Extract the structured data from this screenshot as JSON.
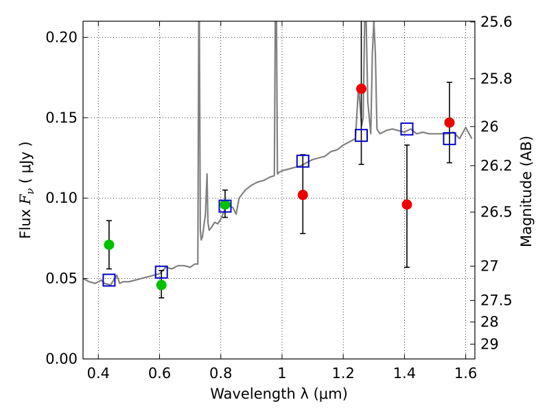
{
  "chart_data": {
    "type": "scatter",
    "xlabel": "Wavelength  λ (μm)",
    "ylabel_parts": {
      "prefix": "Flux  ",
      "symbol": "F",
      "subscript": "ν",
      "units": " ( μJy )"
    },
    "y2label": "Magnitude (AB)",
    "xlim": [
      0.35,
      1.63
    ],
    "ylim": [
      0.0,
      0.21
    ],
    "grid": true,
    "x_ticks": [
      {
        "value": 0.4,
        "label": "0.4"
      },
      {
        "value": 0.6,
        "label": "0.6"
      },
      {
        "value": 0.8,
        "label": "0.8"
      },
      {
        "value": 1.0,
        "label": "1"
      },
      {
        "value": 1.2,
        "label": "1.2"
      },
      {
        "value": 1.4,
        "label": "1.4"
      },
      {
        "value": 1.6,
        "label": "1.6"
      }
    ],
    "y_ticks": [
      {
        "value": 0.0,
        "label": "0.00"
      },
      {
        "value": 0.05,
        "label": "0.05"
      },
      {
        "value": 0.1,
        "label": "0.10"
      },
      {
        "value": 0.15,
        "label": "0.15"
      },
      {
        "value": 0.2,
        "label": "0.20"
      }
    ],
    "y2_ticks": [
      {
        "flux": 0.2096,
        "label": "25.6"
      },
      {
        "flux": 0.1743,
        "label": "25.8"
      },
      {
        "flux": 0.1445,
        "label": "26"
      },
      {
        "flux": 0.1202,
        "label": "26.2"
      },
      {
        "flux": 0.0913,
        "label": "26.5"
      },
      {
        "flux": 0.0577,
        "label": "27"
      },
      {
        "flux": 0.0364,
        "label": "27.5"
      },
      {
        "flux": 0.023,
        "label": "28"
      },
      {
        "flux": 0.0092,
        "label": "29"
      }
    ],
    "model_spectrum": {
      "name": "model SED",
      "color": "#808080",
      "x": [
        0.35,
        0.37,
        0.39,
        0.41,
        0.42,
        0.44,
        0.46,
        0.47,
        0.48,
        0.5,
        0.52,
        0.54,
        0.56,
        0.58,
        0.6,
        0.62,
        0.64,
        0.66,
        0.68,
        0.7,
        0.715,
        0.725,
        0.728,
        0.73,
        0.733,
        0.736,
        0.74,
        0.75,
        0.755,
        0.758,
        0.762,
        0.77,
        0.78,
        0.79,
        0.8,
        0.82,
        0.84,
        0.85,
        0.86,
        0.88,
        0.9,
        0.92,
        0.94,
        0.96,
        0.975,
        0.978,
        0.982,
        0.985,
        0.99,
        1.0,
        1.02,
        1.04,
        1.06,
        1.08,
        1.1,
        1.12,
        1.14,
        1.16,
        1.18,
        1.2,
        1.22,
        1.24,
        1.25,
        1.26,
        1.265,
        1.27,
        1.275,
        1.28,
        1.29,
        1.295,
        1.3,
        1.305,
        1.31,
        1.32,
        1.33,
        1.34,
        1.36,
        1.38,
        1.4,
        1.42,
        1.44,
        1.46,
        1.48,
        1.5,
        1.52,
        1.54,
        1.56,
        1.58,
        1.6,
        1.62
      ],
      "y": [
        0.05,
        0.048,
        0.047,
        0.049,
        0.047,
        0.046,
        0.052,
        0.047,
        0.048,
        0.048,
        0.049,
        0.05,
        0.051,
        0.052,
        0.053,
        0.057,
        0.056,
        0.058,
        0.058,
        0.057,
        0.059,
        0.059,
        0.21,
        0.21,
        0.08,
        0.074,
        0.076,
        0.09,
        0.115,
        0.085,
        0.08,
        0.082,
        0.085,
        0.084,
        0.087,
        0.096,
        0.094,
        0.09,
        0.1,
        0.105,
        0.108,
        0.11,
        0.111,
        0.113,
        0.114,
        0.21,
        0.21,
        0.115,
        0.116,
        0.117,
        0.118,
        0.119,
        0.12,
        0.122,
        0.124,
        0.125,
        0.126,
        0.129,
        0.13,
        0.133,
        0.135,
        0.137,
        0.17,
        0.145,
        0.15,
        0.21,
        0.21,
        0.16,
        0.14,
        0.19,
        0.21,
        0.19,
        0.143,
        0.14,
        0.141,
        0.142,
        0.143,
        0.142,
        0.141,
        0.143,
        0.14,
        0.141,
        0.14,
        0.14,
        0.14,
        0.14,
        0.141,
        0.137,
        0.144,
        0.137
      ]
    },
    "series": [
      {
        "name": "green points",
        "color": "#00c000",
        "marker": "circle",
        "points": [
          {
            "x": 0.435,
            "y": 0.071,
            "err_low": 0.056,
            "err_high": 0.086
          },
          {
            "x": 0.606,
            "y": 0.046,
            "err_low": 0.038,
            "err_high": 0.055
          },
          {
            "x": 0.814,
            "y": 0.096,
            "err_low": 0.088,
            "err_high": 0.105
          }
        ]
      },
      {
        "name": "red points",
        "color": "#ee0000",
        "marker": "circle",
        "points": [
          {
            "x": 1.068,
            "y": 0.102,
            "err_low": 0.078,
            "err_high": 0.127
          },
          {
            "x": 1.259,
            "y": 0.168,
            "err_low": 0.121,
            "err_high": 0.215
          },
          {
            "x": 1.408,
            "y": 0.096,
            "err_low": 0.057,
            "err_high": 0.133
          },
          {
            "x": 1.547,
            "y": 0.147,
            "err_low": 0.122,
            "err_high": 0.172
          }
        ]
      },
      {
        "name": "model photometry",
        "color": "#0000cc",
        "marker": "square",
        "points": [
          {
            "x": 0.435,
            "y": 0.049
          },
          {
            "x": 0.606,
            "y": 0.054
          },
          {
            "x": 0.814,
            "y": 0.095
          },
          {
            "x": 1.068,
            "y": 0.123
          },
          {
            "x": 1.259,
            "y": 0.139
          },
          {
            "x": 1.408,
            "y": 0.143
          },
          {
            "x": 1.547,
            "y": 0.137
          }
        ]
      }
    ]
  }
}
